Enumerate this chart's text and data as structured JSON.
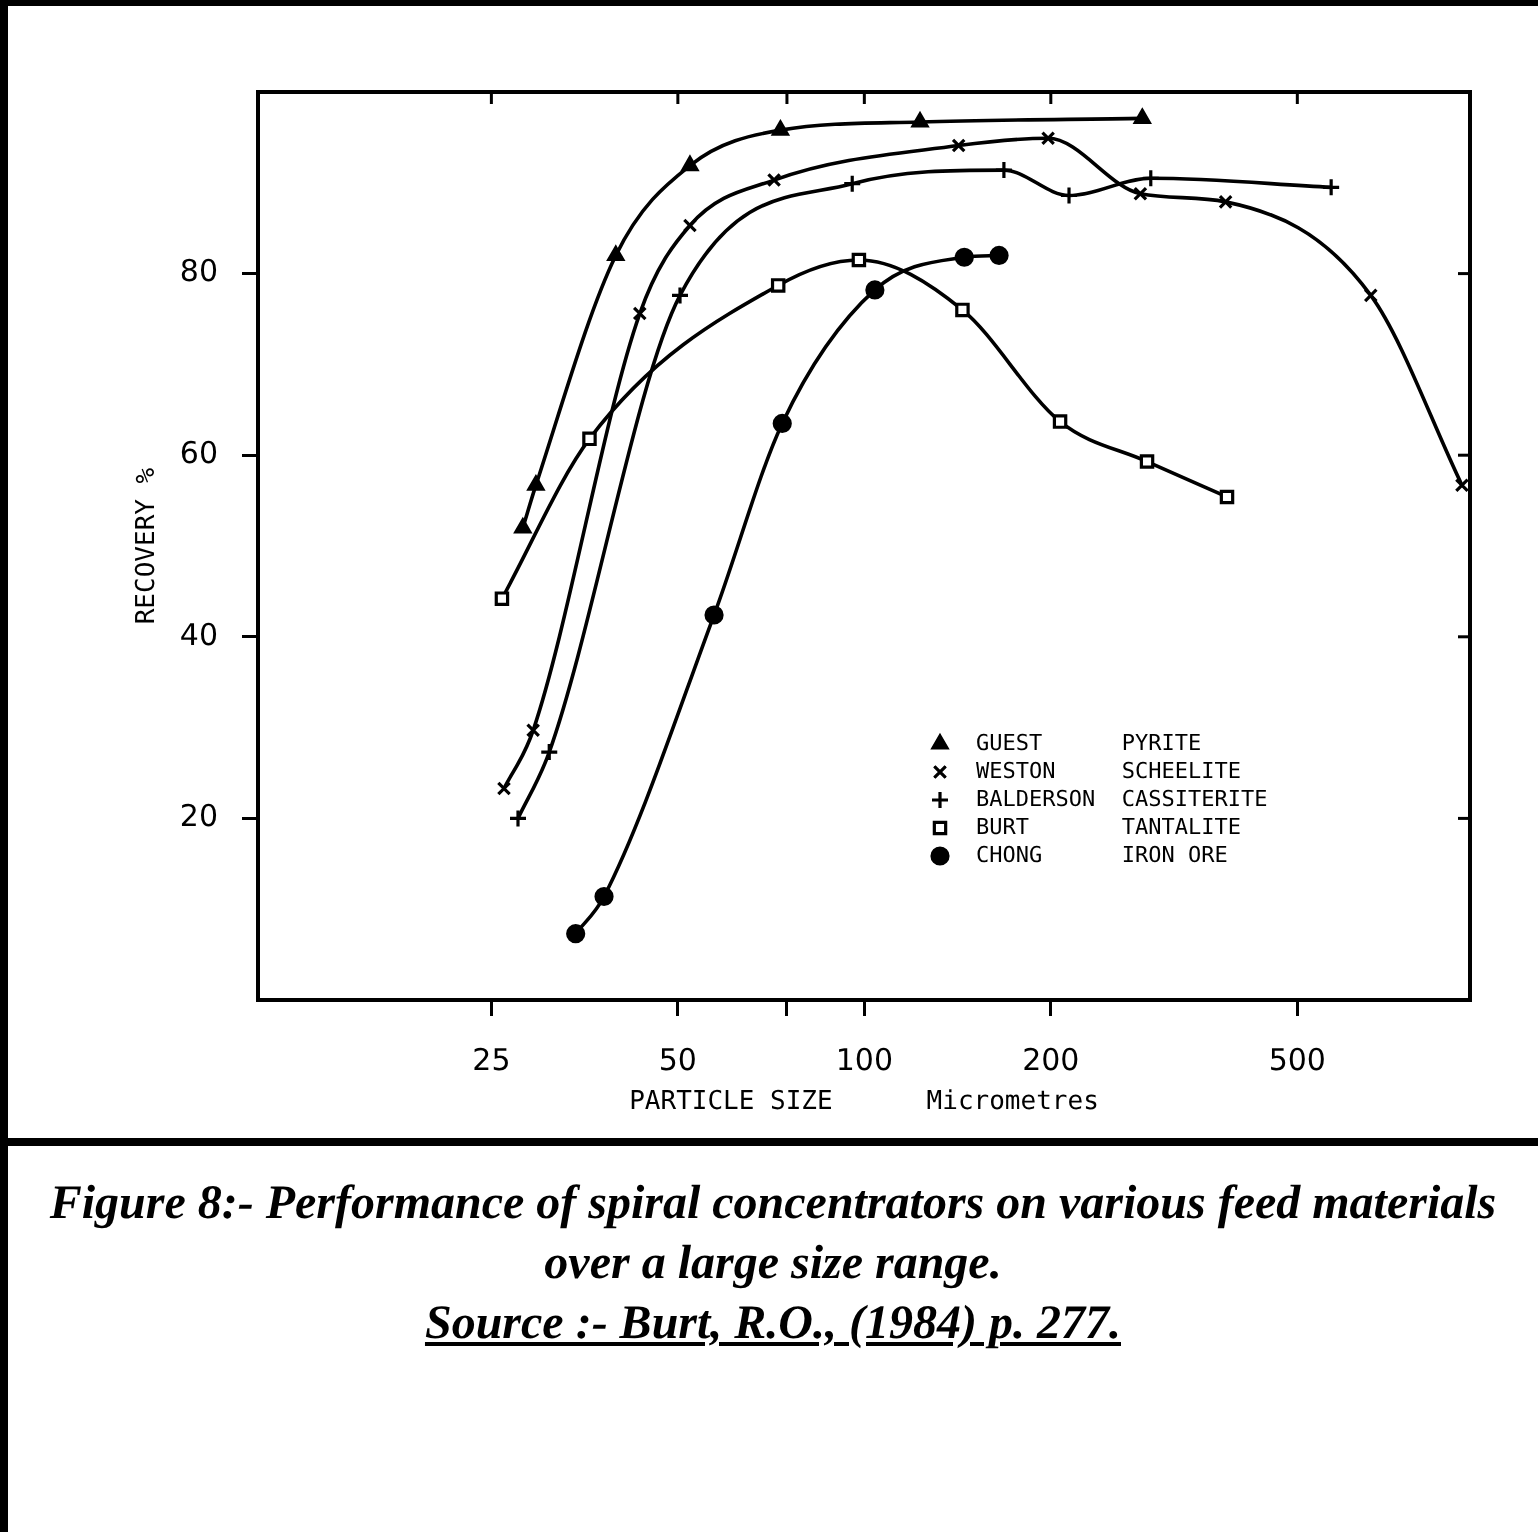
{
  "chart_data": {
    "type": "line",
    "title": "Figure 8:- Performance of spiral concentrators on various feed materials over a large size range.",
    "xlabel": "PARTICLE SIZE      Micrometres",
    "ylabel": "RECOVERY %",
    "log": "x",
    "xlim": [
      10.5,
      950
    ],
    "xticks": [
      25,
      50,
      {
        "value": 75,
        "label": null
      },
      100,
      200,
      500
    ],
    "ylim": [
      0,
      100
    ],
    "yticks": [
      20,
      40,
      60,
      80
    ],
    "legend": "bottom right",
    "line_style": "solid",
    "series": [
      {
        "name": "GUEST      PYRITE",
        "color": "#000000",
        "marker": "triangle",
        "x": [
          28.1,
          29.5,
          39.7,
          52.3,
          73.2,
          123,
          281
        ],
        "values": [
          52,
          56.7,
          82,
          91.9,
          95.8,
          96.7,
          97.1
        ]
      },
      {
        "name": "WESTON     SCHEELITE",
        "color": "#000000",
        "marker": "cross",
        "x": [
          26.2,
          29.2,
          43.4,
          52.3,
          71.5,
          142,
          198,
          279,
          383,
          657,
          922
        ],
        "values": [
          23.3,
          29.7,
          75.6,
          85.3,
          90.3,
          94.1,
          94.9,
          88.8,
          87.9,
          77.6,
          56.7
        ]
      },
      {
        "name": "BALDERSON  CASSITERITE",
        "color": "#000000",
        "marker": "plus",
        "x": [
          27.6,
          31.0,
          50.4,
          95.6,
          168,
          214,
          290,
          567
        ],
        "values": [
          20,
          27.3,
          77.6,
          89.9,
          91.4,
          88.6,
          90.5,
          89.5
        ]
      },
      {
        "name": "BURT       TANTALITE",
        "color": "#000000",
        "marker": "square",
        "x": [
          26,
          36.0,
          72.6,
          98,
          144,
          207,
          286,
          385
        ],
        "values": [
          44.2,
          61.8,
          78.7,
          81.5,
          76,
          63.7,
          59.3,
          55.4
        ]
      },
      {
        "name": "CHONG      IRON ORE",
        "color": "#000000",
        "marker": "circle",
        "x": [
          34.2,
          38.0,
          57.2,
          73.7,
          104,
          145,
          165
        ],
        "values": [
          7.3,
          11.4,
          42.4,
          63.5,
          78.2,
          81.8,
          82
        ]
      }
    ],
    "annotations": [
      "Source :- Burt, R.O., (1984) p. 277."
    ]
  }
}
